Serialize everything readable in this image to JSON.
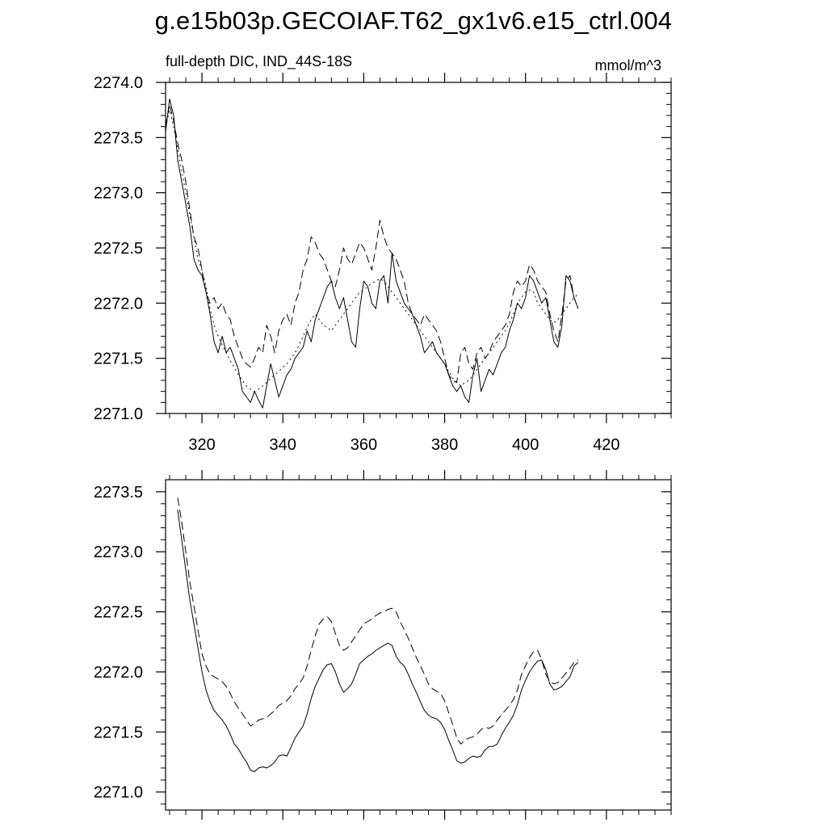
{
  "page_title": "g.e15b03p.GECOIAF.T62_gx1v6.e15_ctrl.004",
  "chart_data": [
    {
      "type": "line",
      "subtitle_left": "full-depth DIC, IND_44S-18S",
      "subtitle_right": "mmol/m^3",
      "xlim": [
        311,
        436
      ],
      "ylim": [
        2271.0,
        2274.0
      ],
      "x_ticks": [
        320,
        340,
        360,
        380,
        400,
        420
      ],
      "x_tick_labels": [
        "320",
        "340",
        "360",
        "380",
        "400",
        "420"
      ],
      "y_ticks": [
        2271.0,
        2271.5,
        2272.0,
        2272.5,
        2273.0,
        2273.5,
        2274.0
      ],
      "y_tick_labels": [
        "2271.0",
        "2271.5",
        "2272.0",
        "2272.5",
        "2273.0",
        "2273.5",
        "2274.0"
      ],
      "grid": false,
      "series": [
        {
          "style": "solid",
          "x_start": 311,
          "x_step": 1,
          "values": [
            2273.55,
            2273.85,
            2273.7,
            2273.3,
            2273.1,
            2272.9,
            2272.7,
            2272.4,
            2272.3,
            2272.25,
            2272.1,
            2271.9,
            2271.65,
            2271.55,
            2271.7,
            2271.55,
            2271.6,
            2271.5,
            2271.4,
            2271.2,
            2271.15,
            2271.1,
            2271.2,
            2271.12,
            2271.05,
            2271.25,
            2271.45,
            2271.3,
            2271.15,
            2271.25,
            2271.35,
            2271.4,
            2271.5,
            2271.55,
            2271.6,
            2271.75,
            2271.65,
            2271.85,
            2271.95,
            2272.05,
            2272.15,
            2272.2,
            2272.05,
            2271.95,
            2272.05,
            2271.85,
            2271.65,
            2271.6,
            2271.95,
            2272.2,
            2272.15,
            2272.0,
            2271.95,
            2272.2,
            2272.25,
            2272.0,
            2272.45,
            2272.2,
            2272.1,
            2272.0,
            2271.95,
            2271.9,
            2271.8,
            2271.7,
            2271.55,
            2271.6,
            2271.65,
            2271.55,
            2271.5,
            2271.45,
            2271.35,
            2271.25,
            2271.2,
            2271.25,
            2271.15,
            2271.1,
            2271.35,
            2271.5,
            2271.2,
            2271.3,
            2271.4,
            2271.35,
            2271.45,
            2271.55,
            2271.6,
            2271.75,
            2271.85,
            2272.0,
            2271.95,
            2272.05,
            2272.25,
            2272.2,
            2272.1,
            2272.0,
            2272.05,
            2271.85,
            2271.65,
            2271.6,
            2271.8,
            2272.25,
            2272.2,
            2272.05,
            2271.95
          ]
        },
        {
          "style": "dashed",
          "x_start": 311,
          "x_step": 1,
          "values": [
            2273.6,
            2273.8,
            2273.65,
            2273.45,
            2273.3,
            2273.1,
            2272.85,
            2272.6,
            2272.5,
            2272.3,
            2272.1,
            2272.0,
            2272.05,
            2271.95,
            2272.0,
            2271.9,
            2271.85,
            2271.7,
            2271.6,
            2271.5,
            2271.45,
            2271.42,
            2271.5,
            2271.6,
            2271.55,
            2271.8,
            2271.7,
            2271.55,
            2271.75,
            2271.85,
            2271.9,
            2271.8,
            2272.0,
            2272.1,
            2272.3,
            2272.4,
            2272.6,
            2272.55,
            2272.45,
            2272.4,
            2272.3,
            2272.2,
            2272.15,
            2272.3,
            2272.5,
            2272.4,
            2272.35,
            2272.45,
            2272.55,
            2272.5,
            2272.4,
            2272.3,
            2272.5,
            2272.75,
            2272.6,
            2272.5,
            2272.45,
            2272.4,
            2272.3,
            2272.2,
            2272.0,
            2271.9,
            2271.85,
            2271.8,
            2271.9,
            2271.85,
            2271.8,
            2271.75,
            2271.65,
            2271.5,
            2271.35,
            2271.3,
            2271.28,
            2271.55,
            2271.6,
            2271.45,
            2271.4,
            2271.55,
            2271.6,
            2271.5,
            2271.55,
            2271.65,
            2271.7,
            2271.75,
            2271.8,
            2271.9,
            2272.1,
            2272.2,
            2272.15,
            2272.2,
            2272.35,
            2272.3,
            2272.2,
            2272.15,
            2272.1,
            2271.9,
            2271.75,
            2271.65,
            2271.9,
            2272.2,
            2272.25,
            2272.05,
            2271.95
          ]
        },
        {
          "style": "dashdot",
          "x_start": 311,
          "x_step": 1,
          "values": [
            2273.6,
            2273.75,
            2273.6,
            2273.4,
            2273.2,
            2273.0,
            2272.8,
            2272.6,
            2272.4,
            2272.3,
            2272.15,
            2271.95,
            2271.8,
            2271.7,
            2271.62,
            2271.55,
            2271.48,
            2271.42,
            2271.35,
            2271.3,
            2271.25,
            2271.22,
            2271.2,
            2271.22,
            2271.25,
            2271.28,
            2271.32,
            2271.35,
            2271.38,
            2271.42,
            2271.45,
            2271.5,
            2271.55,
            2271.62,
            2271.7,
            2271.78,
            2271.85,
            2271.9,
            2271.85,
            2271.8,
            2271.78,
            2271.75,
            2271.8,
            2271.85,
            2271.9,
            2271.95,
            2272.0,
            2272.05,
            2272.1,
            2272.12,
            2272.15,
            2272.18,
            2272.2,
            2272.22,
            2272.2,
            2272.15,
            2272.1,
            2272.05,
            2272.0,
            2271.95,
            2271.9,
            2271.85,
            2271.8,
            2271.75,
            2271.7,
            2271.65,
            2271.6,
            2271.55,
            2271.5,
            2271.45,
            2271.38,
            2271.32,
            2271.28,
            2271.25,
            2271.28,
            2271.3,
            2271.35,
            2271.4,
            2271.45,
            2271.5,
            2271.55,
            2271.6,
            2271.65,
            2271.7,
            2271.75,
            2271.82,
            2271.9,
            2272.0,
            2272.05,
            2272.1,
            2272.12,
            2272.1,
            2272.0,
            2271.95,
            2271.9,
            2271.85,
            2271.82,
            2271.85,
            2271.9,
            2271.95,
            2272.0,
            2272.05,
            2272.08
          ]
        }
      ]
    },
    {
      "type": "line",
      "xlim": [
        311,
        436
      ],
      "ylim": [
        2270.85,
        2273.6
      ],
      "x_ticks": [
        320,
        340,
        360,
        380,
        400,
        420
      ],
      "x_tick_labels": [],
      "y_ticks": [
        2271.0,
        2271.5,
        2272.0,
        2272.5,
        2273.0,
        2273.5
      ],
      "y_tick_labels": [
        "2271.0",
        "2271.5",
        "2272.0",
        "2272.5",
        "2273.0",
        "2273.5"
      ],
      "grid": false,
      "series": [
        {
          "style": "solid",
          "x_start": 314,
          "x_step": 1,
          "values": [
            2273.35,
            2273.1,
            2272.85,
            2272.6,
            2272.4,
            2272.2,
            2272.0,
            2271.85,
            2271.75,
            2271.68,
            2271.64,
            2271.6,
            2271.55,
            2271.48,
            2271.4,
            2271.36,
            2271.3,
            2271.25,
            2271.18,
            2271.17,
            2271.2,
            2271.21,
            2271.2,
            2271.22,
            2271.25,
            2271.3,
            2271.31,
            2271.3,
            2271.37,
            2271.45,
            2271.5,
            2271.55,
            2271.65,
            2271.78,
            2271.88,
            2271.95,
            2272.02,
            2272.06,
            2272.07,
            2272.0,
            2271.9,
            2271.83,
            2271.86,
            2271.9,
            2271.98,
            2272.07,
            2272.1,
            2272.13,
            2272.15,
            2272.18,
            2272.2,
            2272.22,
            2272.24,
            2272.22,
            2272.13,
            2272.08,
            2272.05,
            2271.98,
            2271.9,
            2271.83,
            2271.75,
            2271.68,
            2271.64,
            2271.62,
            2271.61,
            2271.58,
            2271.52,
            2271.43,
            2271.35,
            2271.26,
            2271.24,
            2271.25,
            2271.28,
            2271.3,
            2271.29,
            2271.3,
            2271.35,
            2271.38,
            2271.38,
            2271.4,
            2271.47,
            2271.53,
            2271.58,
            2271.64,
            2271.73,
            2271.85,
            2271.93,
            2272.0,
            2272.05,
            2272.09,
            2272.1,
            2272.02,
            2271.9,
            2271.85,
            2271.86,
            2271.88,
            2271.92,
            2271.96,
            2272.05,
            2272.08
          ]
        },
        {
          "style": "dashed",
          "x_start": 314,
          "x_step": 1,
          "values": [
            2273.45,
            2273.25,
            2273.0,
            2272.75,
            2272.55,
            2272.35,
            2272.15,
            2272.05,
            2271.98,
            2271.96,
            2271.94,
            2271.92,
            2271.88,
            2271.82,
            2271.75,
            2271.7,
            2271.65,
            2271.6,
            2271.55,
            2271.57,
            2271.6,
            2271.61,
            2271.62,
            2271.65,
            2271.68,
            2271.72,
            2271.74,
            2271.76,
            2271.8,
            2271.86,
            2271.9,
            2271.95,
            2272.05,
            2272.18,
            2272.3,
            2272.4,
            2272.44,
            2272.46,
            2272.42,
            2272.32,
            2272.22,
            2272.18,
            2272.2,
            2272.25,
            2272.3,
            2272.35,
            2272.4,
            2272.42,
            2272.44,
            2272.47,
            2272.49,
            2272.5,
            2272.52,
            2272.53,
            2272.5,
            2272.42,
            2272.35,
            2272.28,
            2272.2,
            2272.12,
            2272.05,
            2271.98,
            2271.9,
            2271.86,
            2271.84,
            2271.82,
            2271.76,
            2271.66,
            2271.56,
            2271.45,
            2271.4,
            2271.43,
            2271.45,
            2271.46,
            2271.48,
            2271.52,
            2271.54,
            2271.53,
            2271.55,
            2271.6,
            2271.64,
            2271.68,
            2271.72,
            2271.77,
            2271.85,
            2271.98,
            2272.05,
            2272.12,
            2272.17,
            2272.18,
            2272.1,
            2271.98,
            2271.92,
            2271.9,
            2271.91,
            2271.95,
            2271.99,
            2272.03,
            2272.08,
            2272.1
          ]
        }
      ]
    }
  ]
}
